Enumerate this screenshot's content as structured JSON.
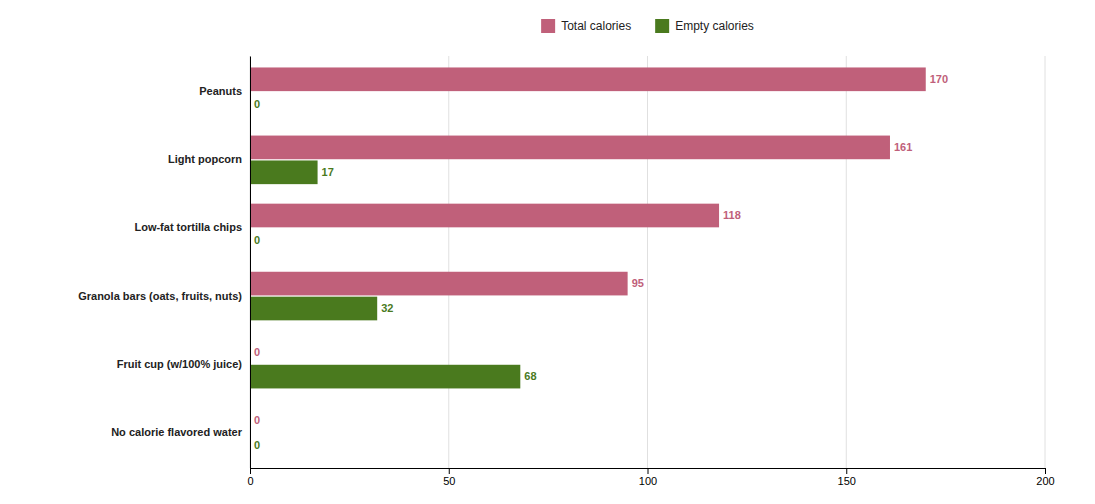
{
  "chart_data": {
    "type": "bar",
    "orientation": "horizontal",
    "categories": [
      "Peanuts",
      "Light popcorn",
      "Low-fat tortilla chips",
      "Granola bars (oats, fruits, nuts)",
      "Fruit cup (w/100% juice)",
      "No calorie flavored water"
    ],
    "series": [
      {
        "name": "Total calories",
        "color": "#c0607a",
        "values": [
          170,
          161,
          118,
          95,
          0,
          0
        ]
      },
      {
        "name": "Empty calories",
        "color": "#4a7a1e",
        "values": [
          0,
          17,
          0,
          32,
          68,
          0
        ]
      }
    ],
    "xlim": [
      0,
      200
    ],
    "xticks": [
      0,
      50,
      100,
      150,
      200
    ],
    "grid": true,
    "data_labels": true,
    "legend": "top"
  }
}
